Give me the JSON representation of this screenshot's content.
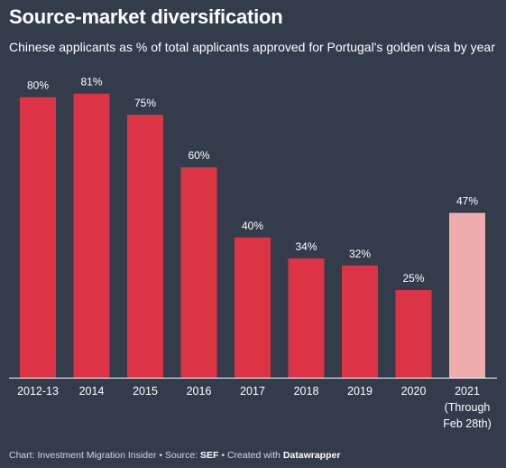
{
  "chart_data": {
    "type": "bar",
    "title": "Source-market diversification",
    "subtitle": "Chinese applicants as % of total applicants approved for Portugal's golden visa by year",
    "categories": [
      "2012-13",
      "2014",
      "2015",
      "2016",
      "2017",
      "2018",
      "2019",
      "2020",
      "2021"
    ],
    "category_sublabels": [
      [],
      [],
      [],
      [],
      [],
      [],
      [],
      [],
      [
        "(Through",
        "Feb 28th)"
      ]
    ],
    "values": [
      80,
      81,
      75,
      60,
      40,
      34,
      32,
      25,
      47
    ],
    "value_labels": [
      "80%",
      "81%",
      "75%",
      "60%",
      "40%",
      "34%",
      "32%",
      "25%",
      "47%"
    ],
    "unit": "%",
    "ylim": [
      0,
      100
    ],
    "grid": false,
    "colors": {
      "bar": "#dc3445",
      "bar_highlight": "#eeadac",
      "background": "#333c4b",
      "baseline": "#ffffff"
    },
    "highlight_index": 8
  },
  "footer": {
    "prefix": "Chart: Investment Migration Insider • Source: ",
    "source": "SEF",
    "middle": " • Created with ",
    "tool": "Datawrapper"
  }
}
